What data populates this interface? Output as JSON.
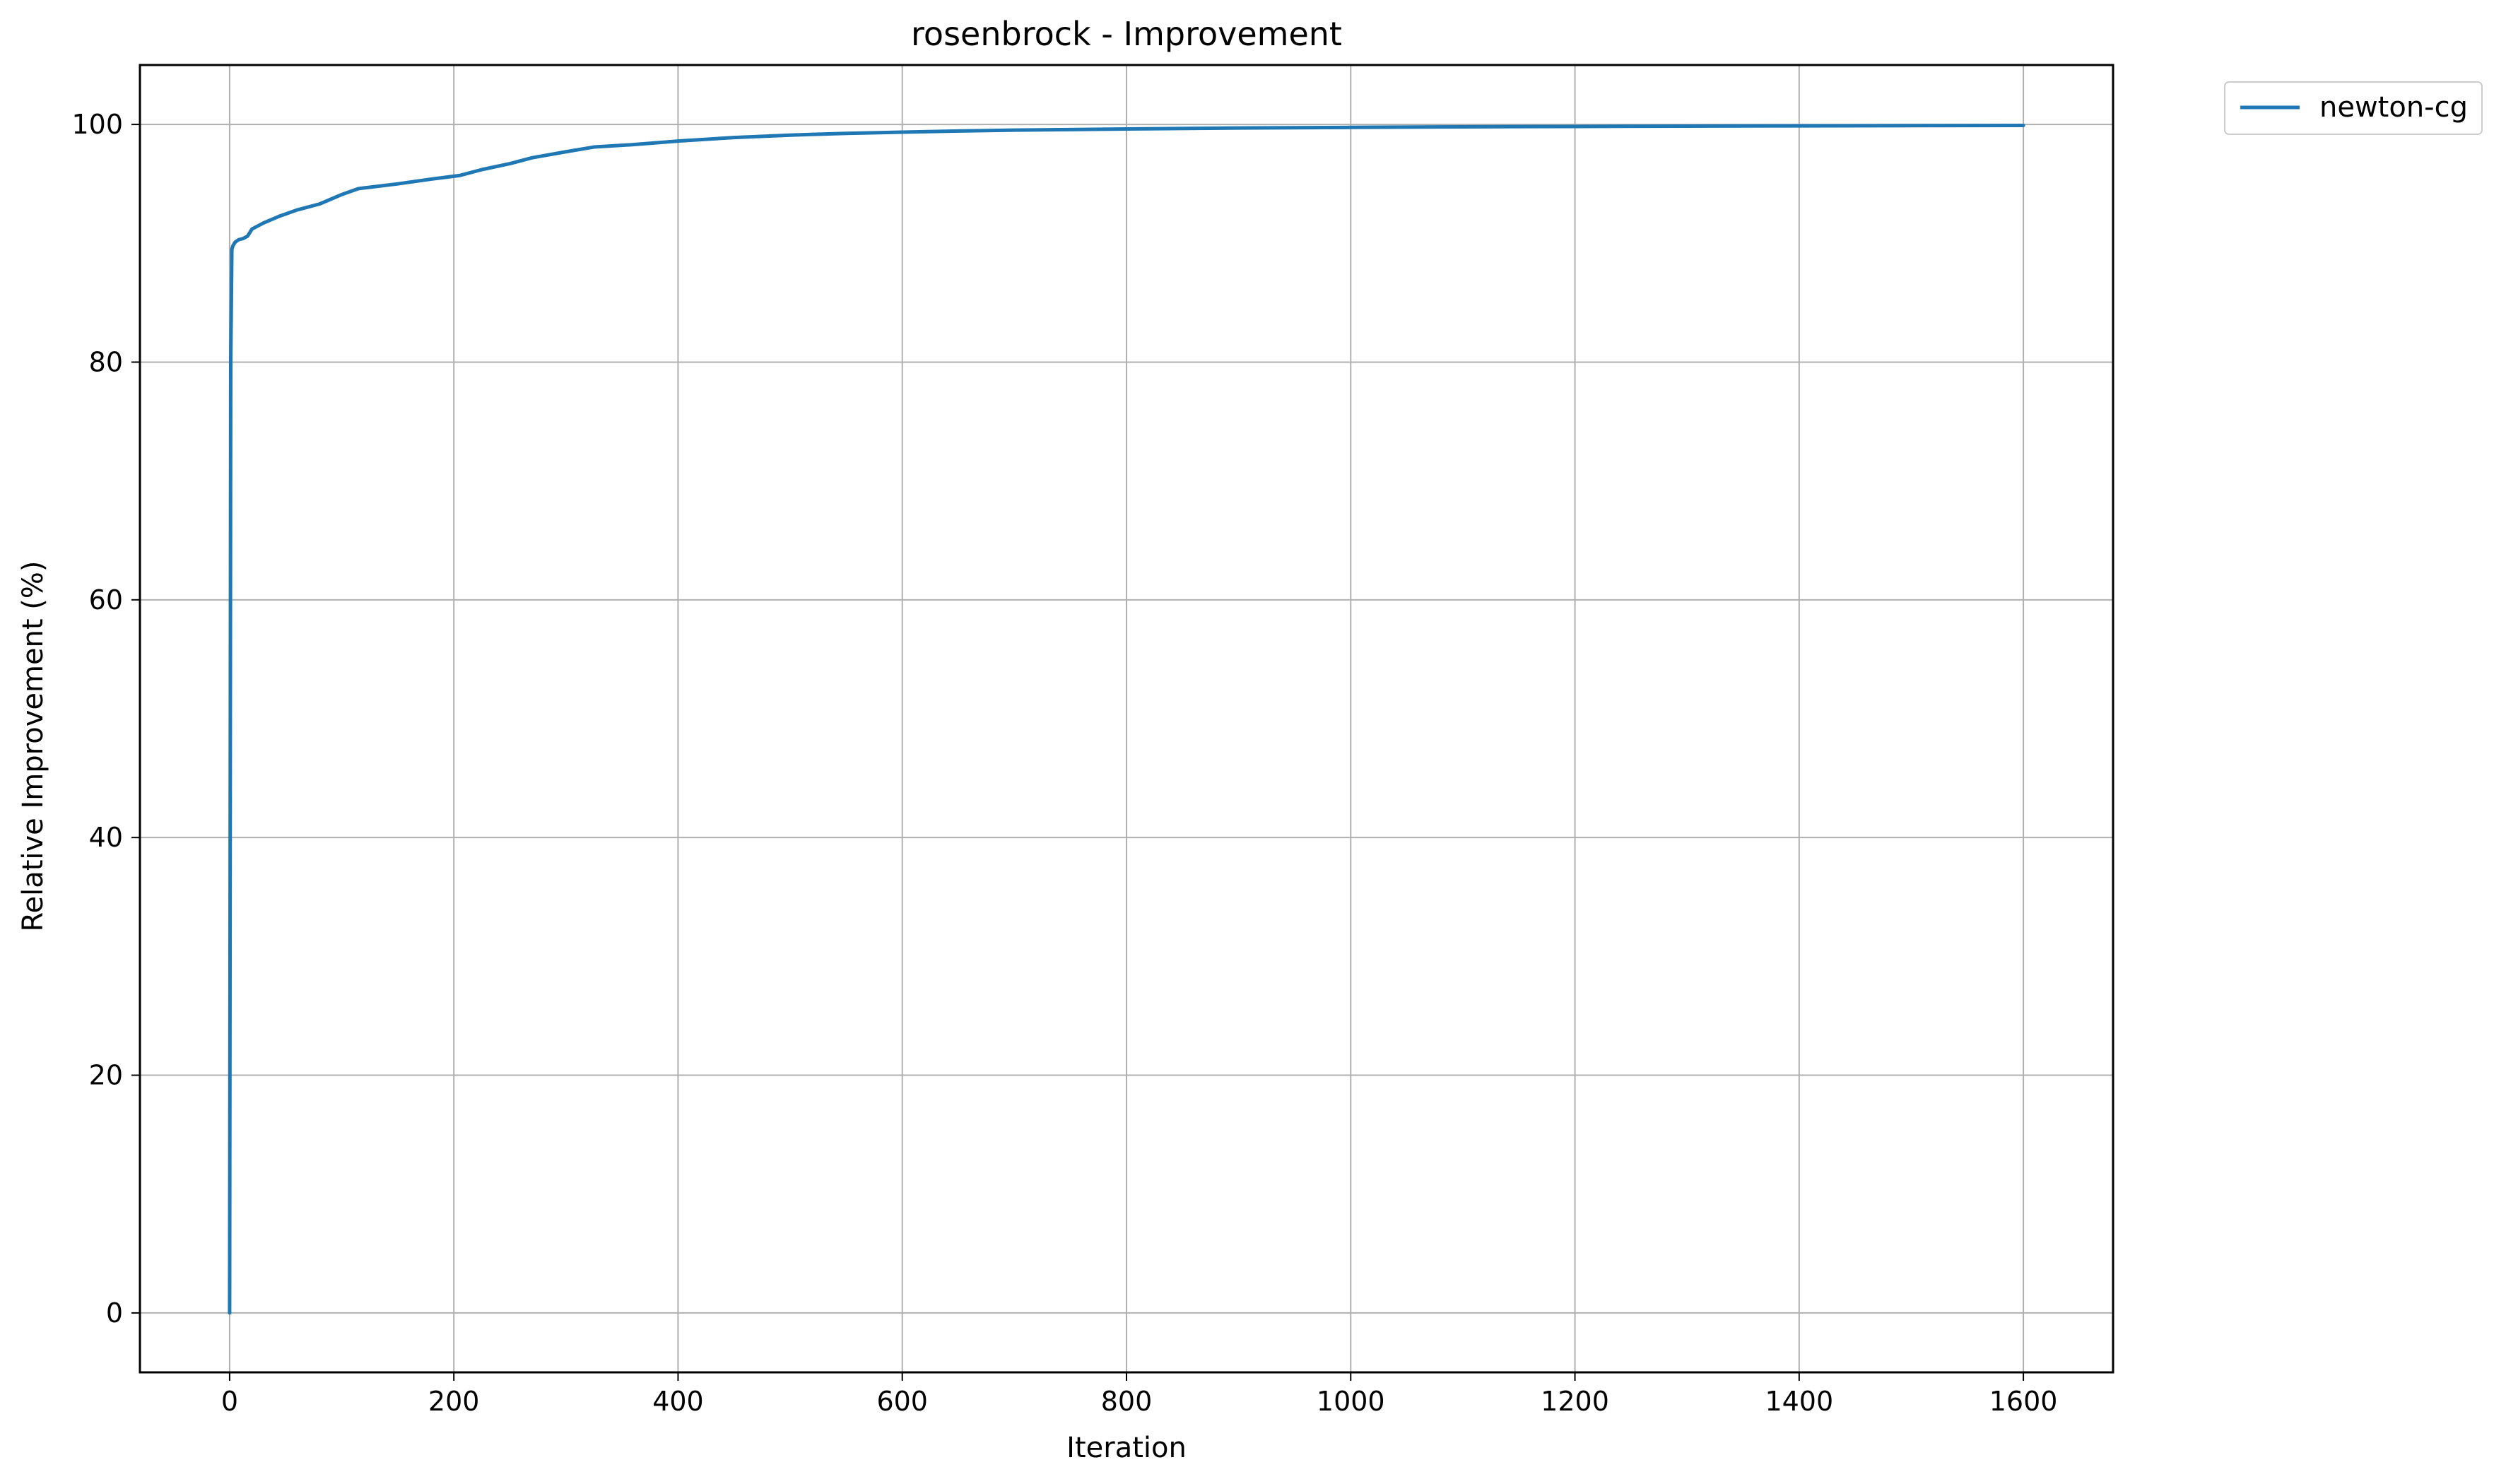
{
  "chart_data": {
    "type": "line",
    "title": "rosenbrock - Improvement",
    "xlabel": "Iteration",
    "ylabel": "Relative Improvement (%)",
    "xlim": [
      -80,
      1680
    ],
    "ylim": [
      -5,
      105
    ],
    "x_ticks": [
      0,
      200,
      400,
      600,
      800,
      1000,
      1200,
      1400,
      1600
    ],
    "y_ticks": [
      0,
      20,
      40,
      60,
      80,
      100
    ],
    "grid": true,
    "legend_position": "outside top-right",
    "series": [
      {
        "name": "newton-cg",
        "color": "#1f77b4",
        "x": [
          0,
          1,
          2,
          3,
          5,
          8,
          12,
          16,
          20,
          30,
          45,
          60,
          80,
          100,
          115,
          150,
          180,
          205,
          225,
          250,
          270,
          300,
          325,
          360,
          400,
          450,
          500,
          550,
          600,
          650,
          700,
          800,
          900,
          1000,
          1100,
          1200,
          1300,
          1400,
          1500,
          1600
        ],
        "y": [
          0,
          80.0,
          89.5,
          89.8,
          90.1,
          90.3,
          90.4,
          90.6,
          91.2,
          91.7,
          92.3,
          92.8,
          93.3,
          94.1,
          94.6,
          95.0,
          95.4,
          95.7,
          96.2,
          96.7,
          97.2,
          97.7,
          98.1,
          98.3,
          98.6,
          98.9,
          99.1,
          99.25,
          99.35,
          99.45,
          99.52,
          99.62,
          99.7,
          99.75,
          99.8,
          99.83,
          99.86,
          99.88,
          99.9,
          99.92
        ]
      }
    ]
  }
}
